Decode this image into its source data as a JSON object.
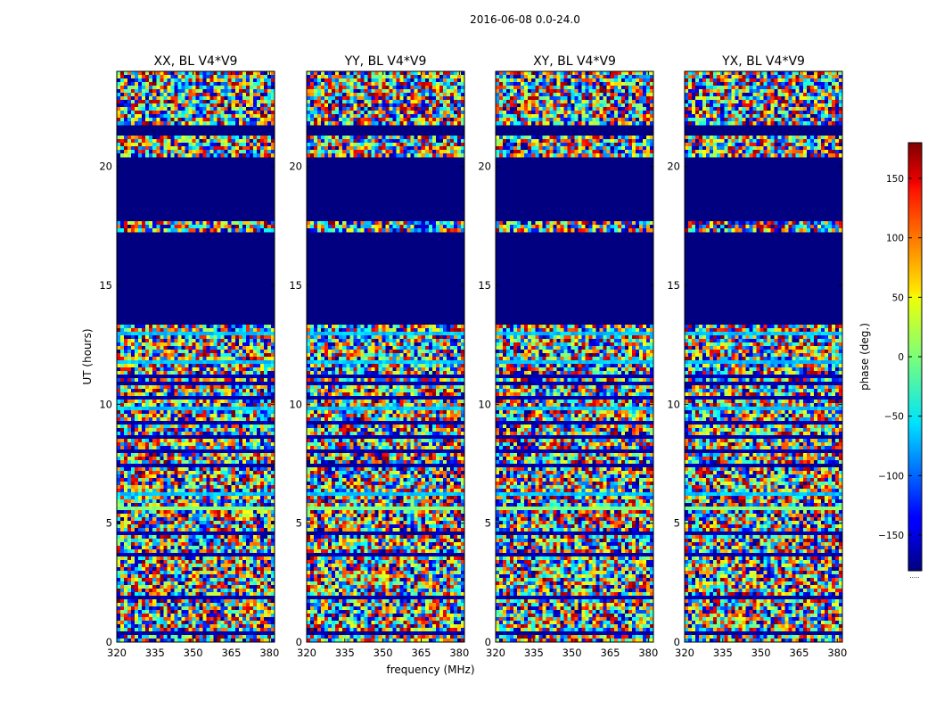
{
  "chart_data": {
    "type": "heatmap",
    "suptitle": "2016-06-08 0.0-24.0",
    "xlabel": "frequency (MHz)",
    "ylabel": "UT (hours)",
    "xlim": [
      320,
      382
    ],
    "ylim": [
      0,
      24
    ],
    "xticks": [
      "320",
      "335",
      "350",
      "365",
      "380"
    ],
    "xtick_values": [
      320,
      335,
      350,
      365,
      380
    ],
    "yticks": [
      "0",
      "5",
      "10",
      "15",
      "20"
    ],
    "ytick_values": [
      0,
      5,
      10,
      15,
      20
    ],
    "colormap": "jet",
    "colorbar": {
      "label": "phase (deg.)",
      "range": [
        -180,
        180
      ],
      "ticks": [
        "150",
        "100",
        "50",
        "0",
        "−50",
        "−100",
        "−150"
      ],
      "tick_values": [
        150,
        100,
        50,
        0,
        -50,
        -100,
        -150
      ],
      "footer": "....."
    },
    "panels": [
      {
        "title": "XX, BL V4*V9",
        "polarization": "XX"
      },
      {
        "title": "YY, BL V4*V9",
        "polarization": "YY"
      },
      {
        "title": "XY, BL V4*V9",
        "polarization": "XY"
      },
      {
        "title": "YX, BL V4*V9",
        "polarization": "YX"
      }
    ],
    "flagged_time_ranges_hours": [
      [
        13.4,
        17.3
      ],
      [
        17.75,
        20.4
      ],
      [
        21.3,
        21.75
      ]
    ],
    "flagged_value_deg": -180,
    "row_bands_hours": [
      {
        "t": [
          23.2,
          23.3
        ],
        "kind": "cyan"
      },
      {
        "t": [
          22.9,
          23.0
        ],
        "kind": "blue"
      },
      {
        "t": [
          22.0,
          22.1
        ],
        "kind": "blue"
      },
      {
        "t": [
          20.5,
          20.6
        ],
        "kind": "blue"
      },
      {
        "t": [
          17.35,
          17.45
        ],
        "kind": "cyan"
      },
      {
        "t": [
          12.9,
          13.0
        ],
        "kind": "cyan"
      },
      {
        "t": [
          12.55,
          12.65
        ],
        "kind": "blue"
      },
      {
        "t": [
          11.95,
          12.05
        ],
        "kind": "blue"
      },
      {
        "t": [
          11.7,
          11.8
        ],
        "kind": "cyan"
      },
      {
        "t": [
          11.35,
          11.45
        ],
        "kind": "blue"
      },
      {
        "t": [
          11.1,
          11.2
        ],
        "kind": "blue"
      },
      {
        "t": [
          10.85,
          10.95
        ],
        "kind": "blue"
      },
      {
        "t": [
          10.6,
          10.7
        ],
        "kind": "blue"
      },
      {
        "t": [
          10.2,
          10.3
        ],
        "kind": "blue"
      },
      {
        "t": [
          9.8,
          9.9
        ],
        "kind": "cyan"
      },
      {
        "t": [
          9.55,
          9.65
        ],
        "kind": "green"
      },
      {
        "t": [
          9.2,
          9.3
        ],
        "kind": "blue"
      },
      {
        "t": [
          8.6,
          8.7
        ],
        "kind": "blue"
      },
      {
        "t": [
          7.95,
          8.05
        ],
        "kind": "blue"
      },
      {
        "t": [
          7.35,
          7.45
        ],
        "kind": "blue"
      },
      {
        "t": [
          6.15,
          6.25
        ],
        "kind": "cyan"
      },
      {
        "t": [
          5.95,
          6.05
        ],
        "kind": "blue"
      },
      {
        "t": [
          5.6,
          5.7
        ],
        "kind": "green"
      },
      {
        "t": [
          5.35,
          5.45
        ],
        "kind": "blue"
      },
      {
        "t": [
          4.55,
          4.65
        ],
        "kind": "blue"
      },
      {
        "t": [
          3.6,
          3.7
        ],
        "kind": "blue"
      },
      {
        "t": [
          3.25,
          3.35
        ],
        "kind": "blue"
      },
      {
        "t": [
          2.95,
          3.05
        ],
        "kind": "blue"
      },
      {
        "t": [
          2.5,
          2.6
        ],
        "kind": "cyan"
      },
      {
        "t": [
          1.85,
          1.95
        ],
        "kind": "blue"
      },
      {
        "t": [
          0.35,
          0.45
        ],
        "kind": "blue"
      }
    ]
  }
}
